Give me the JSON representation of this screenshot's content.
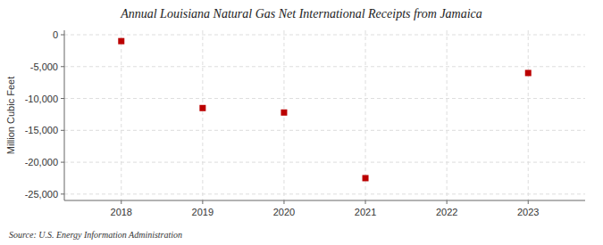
{
  "chart_data": {
    "type": "scatter",
    "title": "Annual Louisiana Natural Gas Net International Receipts from Jamaica",
    "y_label": "Million Cubic Feet",
    "annotations": [
      "Source: U.S. Energy Information Administration"
    ],
    "x": [
      2018,
      2019,
      2020,
      2021,
      2023
    ],
    "values": [
      -1000,
      -11500,
      -12200,
      -22500,
      -6000
    ],
    "color": "#bb0000",
    "marker": "square",
    "xlim": [
      2017.3,
      2023.7
    ],
    "xticks": [
      2018,
      2019,
      2020,
      2021,
      2022,
      2023
    ],
    "ylim": [
      -26000,
      700
    ],
    "yticks": [
      0,
      {
        "value": -5000,
        "label": "-5,000"
      },
      {
        "value": -10000,
        "label": "-10,000"
      },
      {
        "value": -15000,
        "label": "-15,000"
      },
      {
        "value": -20000,
        "label": "-20,000"
      },
      {
        "value": -25000,
        "label": "-25,000"
      }
    ],
    "grid": true
  }
}
